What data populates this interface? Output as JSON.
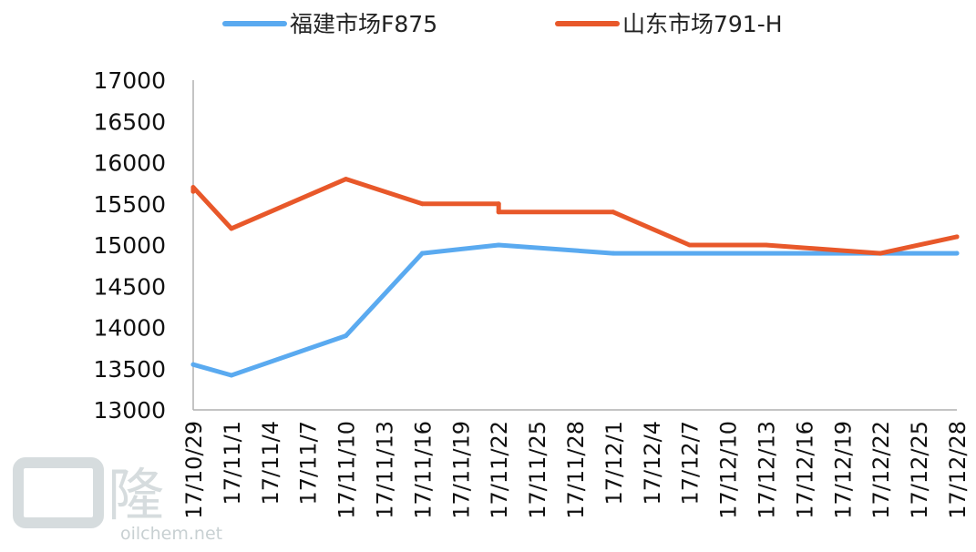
{
  "chart_data": {
    "type": "line",
    "x_categories": [
      "17/10/29",
      "17/11/1",
      "17/11/4",
      "17/11/7",
      "17/11/10",
      "17/11/13",
      "17/11/16",
      "17/11/19",
      "17/11/22",
      "17/11/25",
      "17/11/28",
      "17/12/1",
      "17/12/4",
      "17/12/7",
      "17/12/10",
      "17/12/13",
      "17/12/16",
      "17/12/19",
      "17/12/22",
      "17/12/25",
      "17/12/28"
    ],
    "ylim": [
      13000,
      17000
    ],
    "y_ticks": [
      13000,
      13500,
      14000,
      14500,
      15000,
      15500,
      16000,
      16500,
      17000
    ],
    "legend_position": "top",
    "series": [
      {
        "name": "福建市场F875",
        "color": "#5aaaf0",
        "points": [
          {
            "x": "17/10/29",
            "y": 13550
          },
          {
            "x": "17/11/1",
            "y": 13420
          },
          {
            "x": "17/11/10",
            "y": 13900
          },
          {
            "x": "17/11/16",
            "y": 14900
          },
          {
            "x": "17/11/22",
            "y": 15000
          },
          {
            "x": "17/12/1",
            "y": 14900
          },
          {
            "x": "17/12/28",
            "y": 14900
          }
        ]
      },
      {
        "name": "山东市场791-H",
        "color": "#e8582a",
        "points": [
          {
            "x": "17/10/29",
            "y": 15650
          },
          {
            "x": "17/10/29",
            "y": 15700
          },
          {
            "x": "17/11/1",
            "y": 15200
          },
          {
            "x": "17/11/10",
            "y": 15800
          },
          {
            "x": "17/11/16",
            "y": 15500
          },
          {
            "x": "17/11/22",
            "y": 15500
          },
          {
            "x": "17/11/22",
            "y": 15400
          },
          {
            "x": "17/12/1",
            "y": 15400
          },
          {
            "x": "17/12/7",
            "y": 15000
          },
          {
            "x": "17/12/13",
            "y": 15000
          },
          {
            "x": "17/12/22",
            "y": 14900
          },
          {
            "x": "17/12/22",
            "y": 14900
          },
          {
            "x": "17/12/28",
            "y": 15100
          }
        ]
      }
    ]
  },
  "watermark": {
    "logo_char": "隆",
    "site_text": "oilchem.net"
  }
}
